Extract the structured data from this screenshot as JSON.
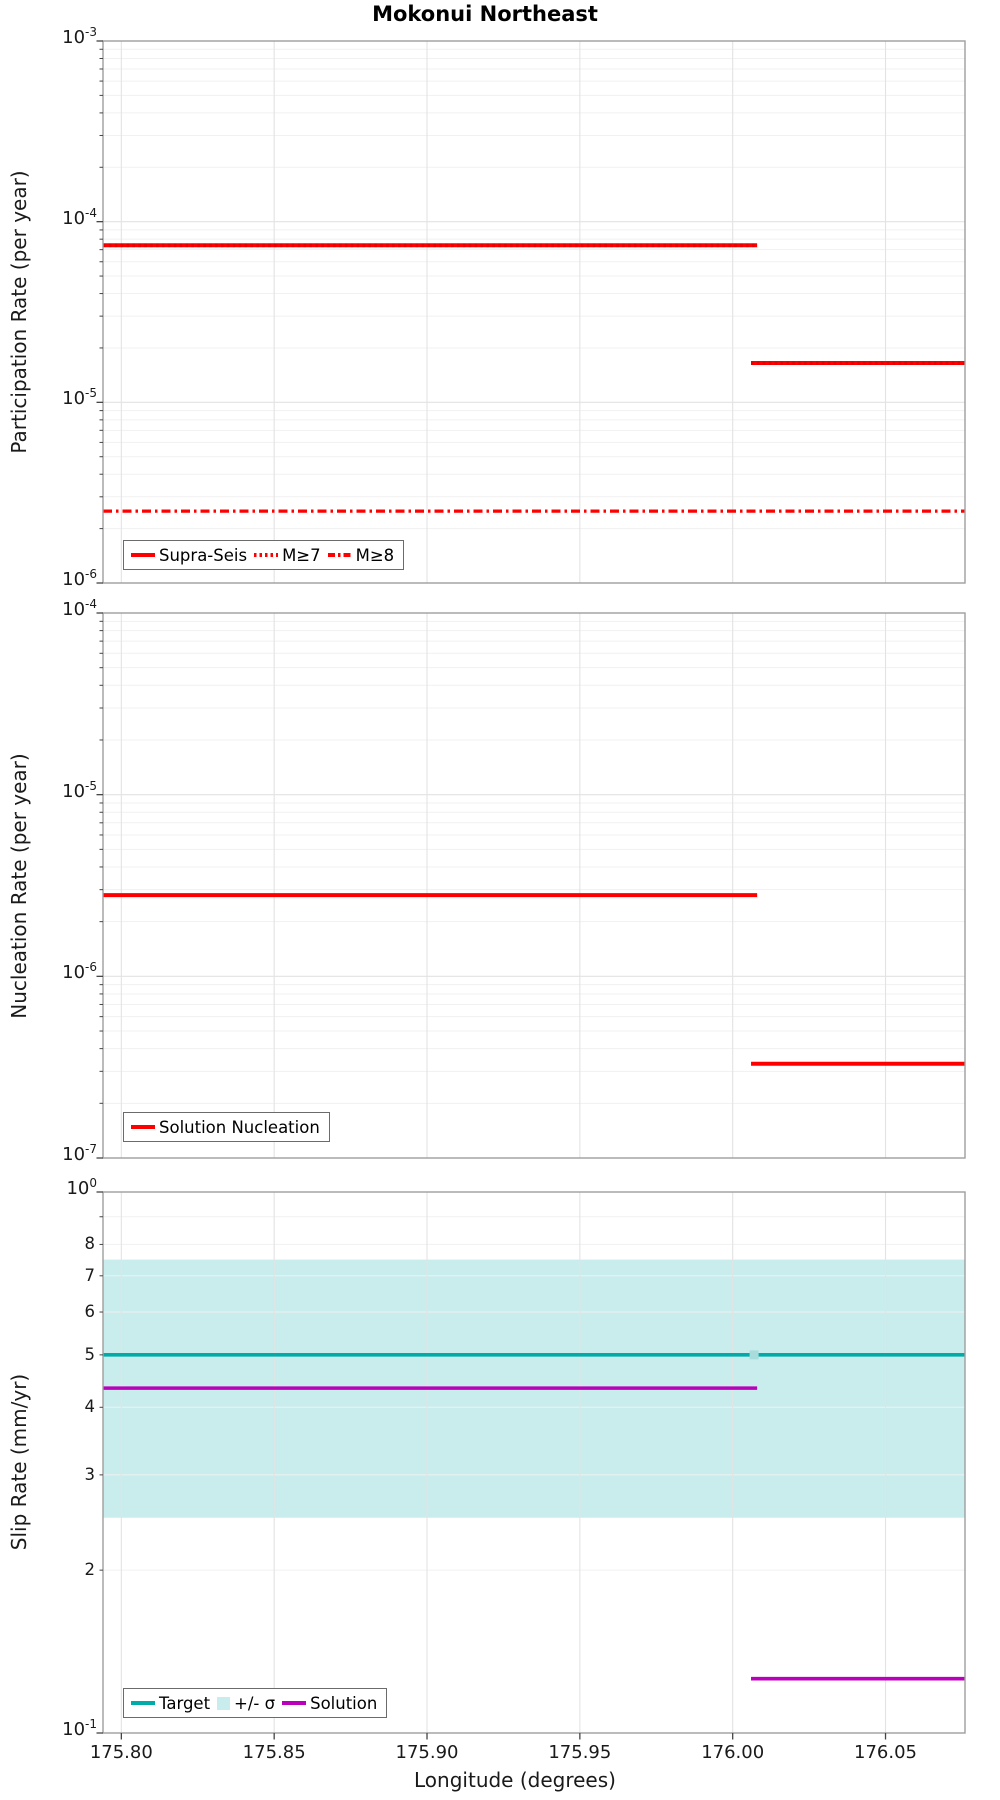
{
  "title": "Mokonui Northeast",
  "xlabel": "Longitude (degrees)",
  "x_axis": {
    "range": [
      175.794,
      176.076
    ],
    "tick_values": [
      175.8,
      175.85,
      175.9,
      175.95,
      176.0,
      176.05
    ],
    "tick_labels": [
      "175.80",
      "175.85",
      "175.90",
      "175.95",
      "176.00",
      "176.05"
    ]
  },
  "colors": {
    "red": "#ff0000",
    "red_overlay": "#e60000",
    "teal": "#00aba9",
    "magenta": "#bb00bb",
    "sigma_band": "#c9ecec",
    "grid_minor": "#f1f1f1",
    "grid_major": "#e2e2e2",
    "grid_vertical": "#e3e3e3",
    "spine": "#9e9e9e",
    "tick": "#444444",
    "text": "#1a1a1a"
  },
  "chart_data": [
    {
      "id": "participation",
      "type": "line",
      "ylabel": "Participation Rate (per year)",
      "yscale": "log",
      "ylim": [
        1e-06,
        0.001
      ],
      "grid": true,
      "legend_position": "lower left",
      "ytick_labels": [
        {
          "base": "10",
          "exp": "-3",
          "value": 0.001
        },
        {
          "base": "10",
          "exp": "-4",
          "value": 0.0001
        },
        {
          "base": "10",
          "exp": "-5",
          "value": 1e-05
        },
        {
          "base": "10",
          "exp": "-6",
          "value": 1e-06
        }
      ],
      "series": [
        {
          "name": "Supra-Seis",
          "style": "solid",
          "color": "#ff0000",
          "width": 4,
          "segments": [
            {
              "x": [
                175.794,
                176.008
              ],
              "y": 7.4e-05
            },
            {
              "x": [
                176.006,
                176.076
              ],
              "y": 1.65e-05
            }
          ]
        },
        {
          "name": "M≥7",
          "style": "dotted",
          "color": "#e60000",
          "width": 3.6,
          "segments": [
            {
              "x": [
                175.794,
                176.008
              ],
              "y": 7.4e-05
            },
            {
              "x": [
                176.006,
                176.076
              ],
              "y": 1.65e-05
            }
          ]
        },
        {
          "name": "M≥8",
          "style": "dashdot",
          "color": "#ff0000",
          "width": 3.2,
          "segments": [
            {
              "x": [
                175.794,
                176.076
              ],
              "y": 2.5e-06
            }
          ]
        }
      ],
      "legend": [
        {
          "label": "Supra-Seis",
          "swatch": "solid-red"
        },
        {
          "label": "M≥7",
          "swatch": "dotted-red"
        },
        {
          "label": "M≥8",
          "swatch": "dashdot-red"
        }
      ]
    },
    {
      "id": "nucleation",
      "type": "line",
      "ylabel": "Nucleation Rate (per year)",
      "yscale": "log",
      "ylim": [
        1e-07,
        0.0001
      ],
      "grid": true,
      "legend_position": "lower left",
      "ytick_labels": [
        {
          "base": "10",
          "exp": "-4",
          "value": 0.0001
        },
        {
          "base": "10",
          "exp": "-5",
          "value": 1e-05
        },
        {
          "base": "10",
          "exp": "-6",
          "value": 1e-06
        },
        {
          "base": "10",
          "exp": "-7",
          "value": 1e-07
        }
      ],
      "series": [
        {
          "name": "Solution Nucleation",
          "style": "solid",
          "color": "#ff0000",
          "width": 4,
          "segments": [
            {
              "x": [
                175.794,
                176.008
              ],
              "y": 2.8e-06
            },
            {
              "x": [
                176.006,
                176.076
              ],
              "y": 3.3e-07
            }
          ]
        }
      ],
      "legend": [
        {
          "label": "Solution Nucleation",
          "swatch": "solid-red"
        }
      ]
    },
    {
      "id": "slip-rate",
      "type": "line",
      "ylabel": "Slip Rate (mm/yr)",
      "yscale": "log",
      "ylim": [
        0.1,
        1.0
      ],
      "grid": true,
      "legend_position": "lower left",
      "ytick_labels": [
        {
          "base": "10",
          "exp": "0",
          "value": 1.0
        },
        {
          "base": "10",
          "exp": "-1",
          "value": 0.1
        }
      ],
      "minor_tick_labels": [
        {
          "label": "8",
          "value": 0.8
        },
        {
          "label": "7",
          "value": 0.7
        },
        {
          "label": "6",
          "value": 0.6
        },
        {
          "label": "5",
          "value": 0.5
        },
        {
          "label": "4",
          "value": 0.4
        },
        {
          "label": "3",
          "value": 0.3
        },
        {
          "label": "2",
          "value": 0.2
        }
      ],
      "band": {
        "name": "+/- σ",
        "x": [
          175.794,
          176.076
        ],
        "y_low": 0.25,
        "y_high": 0.75,
        "color": "#c9ecec",
        "marker_x": 176.007,
        "marker_color": "#a8dcdc"
      },
      "series": [
        {
          "name": "Target",
          "style": "solid",
          "color": "#00aba9",
          "width": 3.6,
          "segments": [
            {
              "x": [
                175.794,
                176.076
              ],
              "y": 0.5
            }
          ]
        },
        {
          "name": "Solution",
          "style": "solid",
          "color": "#bb00bb",
          "width": 3.6,
          "segments": [
            {
              "x": [
                175.794,
                176.008
              ],
              "y": 0.434
            },
            {
              "x": [
                176.006,
                176.076
              ],
              "y": 0.126
            }
          ]
        }
      ],
      "legend": [
        {
          "label": "Target",
          "swatch": "solid-teal"
        },
        {
          "label": "+/- σ",
          "swatch": "patch-cyan"
        },
        {
          "label": "Solution",
          "swatch": "solid-magenta"
        }
      ]
    }
  ]
}
